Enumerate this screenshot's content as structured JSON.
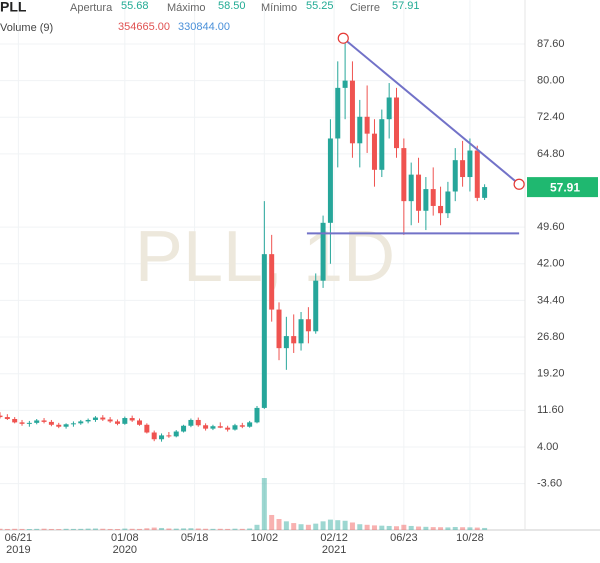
{
  "chart_data": {
    "type": "candlestick",
    "header": {
      "symbol": "PLL",
      "open_label": "Apertura",
      "high_label": "Máximo",
      "low_label": "Mínimo",
      "close_label": "Cierre",
      "value_labels": [
        "55.68",
        "58.50",
        "55.25",
        "57.91"
      ],
      "volume_label": "Volume (9)",
      "volume_value_labels": [
        "354665.00",
        "330844.00"
      ]
    },
    "watermark": "PLL, 1D",
    "up_color": "#26a69a",
    "down_color": "#ef5350",
    "volume_ma_color": "#4a90d9",
    "x": [
      0,
      2,
      4,
      6,
      8,
      10,
      12,
      14,
      16,
      18,
      20,
      22,
      24,
      26,
      28,
      30,
      32,
      34,
      36,
      38,
      40,
      42,
      44,
      46,
      48,
      50,
      52,
      54,
      56,
      58,
      60,
      62,
      64,
      66,
      68,
      70,
      72,
      74,
      76,
      78,
      80,
      82,
      84,
      86,
      88,
      90,
      92,
      94,
      96,
      98,
      100,
      102,
      104,
      106,
      108,
      110,
      112,
      114,
      116,
      118,
      120,
      122,
      124,
      126,
      128,
      130,
      132
    ],
    "ohlc": [
      [
        10.5,
        11.2,
        9.9,
        10.2
      ],
      [
        10.2,
        10.8,
        9.6,
        9.8
      ],
      [
        9.8,
        10.2,
        8.9,
        9.1
      ],
      [
        9.1,
        9.6,
        8.4,
        8.8
      ],
      [
        8.8,
        9.4,
        8.2,
        9.0
      ],
      [
        9.0,
        9.8,
        8.7,
        9.5
      ],
      [
        9.5,
        10.0,
        8.9,
        9.2
      ],
      [
        9.2,
        9.6,
        8.3,
        8.6
      ],
      [
        8.6,
        9.0,
        7.9,
        8.2
      ],
      [
        8.2,
        8.9,
        7.8,
        8.7
      ],
      [
        8.7,
        9.3,
        8.2,
        8.9
      ],
      [
        8.9,
        9.6,
        8.6,
        9.3
      ],
      [
        9.3,
        9.9,
        8.9,
        9.6
      ],
      [
        9.6,
        10.4,
        9.2,
        10.1
      ],
      [
        10.1,
        10.6,
        9.4,
        9.7
      ],
      [
        9.7,
        10.2,
        9.0,
        9.3
      ],
      [
        9.3,
        9.7,
        8.5,
        8.8
      ],
      [
        8.8,
        10.3,
        8.6,
        10.0
      ],
      [
        10.0,
        10.5,
        9.2,
        9.5
      ],
      [
        9.5,
        9.9,
        8.4,
        8.6
      ],
      [
        8.6,
        8.9,
        6.8,
        7.0
      ],
      [
        7.0,
        7.4,
        5.2,
        5.6
      ],
      [
        5.6,
        6.8,
        5.1,
        6.4
      ],
      [
        6.4,
        7.1,
        5.9,
        6.2
      ],
      [
        6.2,
        7.5,
        6.0,
        7.2
      ],
      [
        7.2,
        8.6,
        7.0,
        8.4
      ],
      [
        8.4,
        9.9,
        8.1,
        9.6
      ],
      [
        9.6,
        10.1,
        8.2,
        8.5
      ],
      [
        8.5,
        8.9,
        7.4,
        7.8
      ],
      [
        7.8,
        8.6,
        7.5,
        8.3
      ],
      [
        8.3,
        9.1,
        7.9,
        8.0
      ],
      [
        8.0,
        8.4,
        7.2,
        7.6
      ],
      [
        7.6,
        8.8,
        7.4,
        8.5
      ],
      [
        8.5,
        9.0,
        7.9,
        8.2
      ],
      [
        8.2,
        9.4,
        8.0,
        9.1
      ],
      [
        9.1,
        12.5,
        8.9,
        12.1
      ],
      [
        12.1,
        55.0,
        11.9,
        44.0
      ],
      [
        44.0,
        48.0,
        30.0,
        32.5
      ],
      [
        32.5,
        34.0,
        22.0,
        24.5
      ],
      [
        24.5,
        31.0,
        20.0,
        27.0
      ],
      [
        27.0,
        31.5,
        23.5,
        25.5
      ],
      [
        25.5,
        32.0,
        24.0,
        30.5
      ],
      [
        30.5,
        33.0,
        25.5,
        28.0
      ],
      [
        28.0,
        40.0,
        27.5,
        38.5
      ],
      [
        38.5,
        52.0,
        37.0,
        50.5
      ],
      [
        50.5,
        72.0,
        42.0,
        68.0
      ],
      [
        68.0,
        84.0,
        62.0,
        78.5
      ],
      [
        78.5,
        88.5,
        72.0,
        80.0
      ],
      [
        80.0,
        84.0,
        64.0,
        67.0
      ],
      [
        67.0,
        76.0,
        62.0,
        72.5
      ],
      [
        72.5,
        79.0,
        65.0,
        69.0
      ],
      [
        69.0,
        72.0,
        58.0,
        61.5
      ],
      [
        61.5,
        74.0,
        60.0,
        72.0
      ],
      [
        72.0,
        79.5,
        68.0,
        76.5
      ],
      [
        76.5,
        78.5,
        64.0,
        66.0
      ],
      [
        66.0,
        68.0,
        48.0,
        55.0
      ],
      [
        55.0,
        63.0,
        50.0,
        60.5
      ],
      [
        60.5,
        64.0,
        50.5,
        53.0
      ],
      [
        53.0,
        60.0,
        49.0,
        57.5
      ],
      [
        57.5,
        62.0,
        52.0,
        54.0
      ],
      [
        54.0,
        58.0,
        50.0,
        52.5
      ],
      [
        52.5,
        59.0,
        51.5,
        57.0
      ],
      [
        57.0,
        66.0,
        55.0,
        63.5
      ],
      [
        63.5,
        67.5,
        58.0,
        60.0
      ],
      [
        60.0,
        68.0,
        57.0,
        65.5
      ],
      [
        65.5,
        66.5,
        55.0,
        55.68
      ],
      [
        55.68,
        58.5,
        55.25,
        57.91
      ]
    ],
    "volume": [
      220000,
      180000,
      210000,
      190000,
      170000,
      200000,
      230000,
      180000,
      160000,
      210000,
      190000,
      200000,
      240000,
      260000,
      220000,
      180000,
      170000,
      250000,
      210000,
      190000,
      300000,
      420000,
      350000,
      260000,
      240000,
      280000,
      310000,
      260000,
      220000,
      200000,
      210000,
      190000,
      230000,
      200000,
      260000,
      900000,
      9000000,
      2600000,
      1900000,
      1500000,
      1200000,
      1000000,
      900000,
      1100000,
      1500000,
      1800000,
      1700000,
      1600000,
      1300000,
      1000000,
      900000,
      800000,
      750000,
      700000,
      650000,
      900000,
      700000,
      600000,
      550000,
      500000,
      480000,
      450000,
      520000,
      480000,
      460000,
      420000,
      354665
    ],
    "xlim": [
      0,
      143
    ],
    "xticks": [
      {
        "value": 5,
        "label": "06/21"
      },
      {
        "value": 34,
        "label": "01/08"
      },
      {
        "value": 53,
        "label": "05/18"
      },
      {
        "value": 72,
        "label": "10/02"
      },
      {
        "value": 91,
        "label": "02/12"
      },
      {
        "value": 110,
        "label": "06/23"
      },
      {
        "value": 128,
        "label": "10/28"
      }
    ],
    "years": [
      {
        "value": 5,
        "label": "2019"
      },
      {
        "value": 34,
        "label": "2020"
      },
      {
        "value": 91,
        "label": "2021"
      }
    ],
    "ylim": [
      -13.23,
      96.73
    ],
    "yticks": [
      {
        "value": 87.6,
        "label": "87.60"
      },
      {
        "value": 80,
        "label": "80.00"
      },
      {
        "value": 72.4,
        "label": "72.40"
      },
      {
        "value": 64.8,
        "label": "64.80"
      },
      {
        "value": 49.6,
        "label": "49.60"
      },
      {
        "value": 42,
        "label": "42.00"
      },
      {
        "value": 34.4,
        "label": "34.40"
      },
      {
        "value": 26.8,
        "label": "26.80"
      },
      {
        "value": 19.2,
        "label": "19.20"
      },
      {
        "value": 11.6,
        "label": "11.60"
      },
      {
        "value": 4,
        "label": "4.00"
      },
      {
        "value": -3.6,
        "label": "-3.60"
      }
    ],
    "grid": true,
    "trendline_color": "#7272c8",
    "trendlines": [
      {
        "x": [
          93.5,
          141.4
        ],
        "y": [
          88.8,
          58.5
        ]
      },
      {
        "x": [
          83.6,
          141.4
        ],
        "y": [
          48.3,
          48.3
        ]
      }
    ]
  }
}
